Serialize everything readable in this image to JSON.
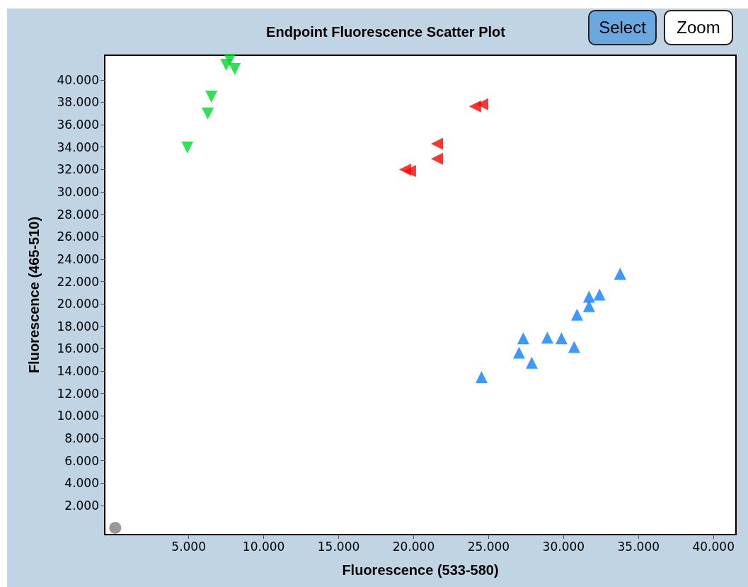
{
  "chart_data": {
    "type": "scatter",
    "title": "Endpoint Fluorescence Scatter Plot",
    "xlabel": "Fluorescence (533-580)",
    "ylabel": "Fluorescence (465-510)",
    "annotations": [
      "Select",
      "Zoom"
    ],
    "series": [
      {
        "color": "#808080",
        "marker": "circle",
        "x": [
          100
        ],
        "values": [
          0
        ]
      },
      {
        "color": "#00d82a",
        "marker": "triangle-down",
        "x": [
          7740,
          7500,
          8070,
          6510,
          6270,
          4910
        ],
        "values": [
          41790,
          41350,
          40960,
          38500,
          37000,
          33970
        ]
      },
      {
        "color": "#ff0000",
        "marker": "triangle-left",
        "x": [
          24580,
          24100,
          21560,
          21560,
          19760,
          19430
        ],
        "values": [
          37820,
          37630,
          34290,
          32950,
          31860,
          31990
        ]
      },
      {
        "color": "#0a80ff",
        "marker": "triangle",
        "x": [
          33770,
          31700,
          32400,
          31700,
          30900,
          27310,
          28920,
          29860,
          30710,
          27030,
          27880,
          24530
        ],
        "values": [
          22690,
          20640,
          20830,
          19810,
          19040,
          16920,
          16990,
          16920,
          16150,
          15640,
          14740,
          13460
        ]
      }
    ],
    "xlim": [
      -600,
      41500
    ],
    "xticks": [
      {
        "value": 5000,
        "label": "5.000"
      },
      {
        "value": 10000,
        "label": "10.000"
      },
      {
        "value": 15000,
        "label": "15.000"
      },
      {
        "value": 20000,
        "label": "20.000"
      },
      {
        "value": 25000,
        "label": "25.000"
      },
      {
        "value": 30000,
        "label": "30.000"
      },
      {
        "value": 35000,
        "label": "35.000"
      },
      {
        "value": 40000,
        "label": "40.000"
      }
    ],
    "ylim": [
      -600,
      42200
    ],
    "yticks": [
      {
        "value": 2000,
        "label": "2.000"
      },
      {
        "value": 4000,
        "label": "4.000"
      },
      {
        "value": 6000,
        "label": "6.000"
      },
      {
        "value": 8000,
        "label": "8.000"
      },
      {
        "value": 10000,
        "label": "10.000"
      },
      {
        "value": 12000,
        "label": "12.000"
      },
      {
        "value": 14000,
        "label": "14.000"
      },
      {
        "value": 16000,
        "label": "16.000"
      },
      {
        "value": 18000,
        "label": "18.000"
      },
      {
        "value": 20000,
        "label": "20.000"
      },
      {
        "value": 22000,
        "label": "22.000"
      },
      {
        "value": 24000,
        "label": "24.000"
      },
      {
        "value": 26000,
        "label": "26.000"
      },
      {
        "value": 28000,
        "label": "28.000"
      },
      {
        "value": 30000,
        "label": "30.000"
      },
      {
        "value": 32000,
        "label": "32.000"
      },
      {
        "value": 34000,
        "label": "34.000"
      },
      {
        "value": 36000,
        "label": "36.000"
      },
      {
        "value": 38000,
        "label": "38.000"
      },
      {
        "value": 40000,
        "label": "40.000"
      }
    ],
    "tick_labels": "xy"
  }
}
